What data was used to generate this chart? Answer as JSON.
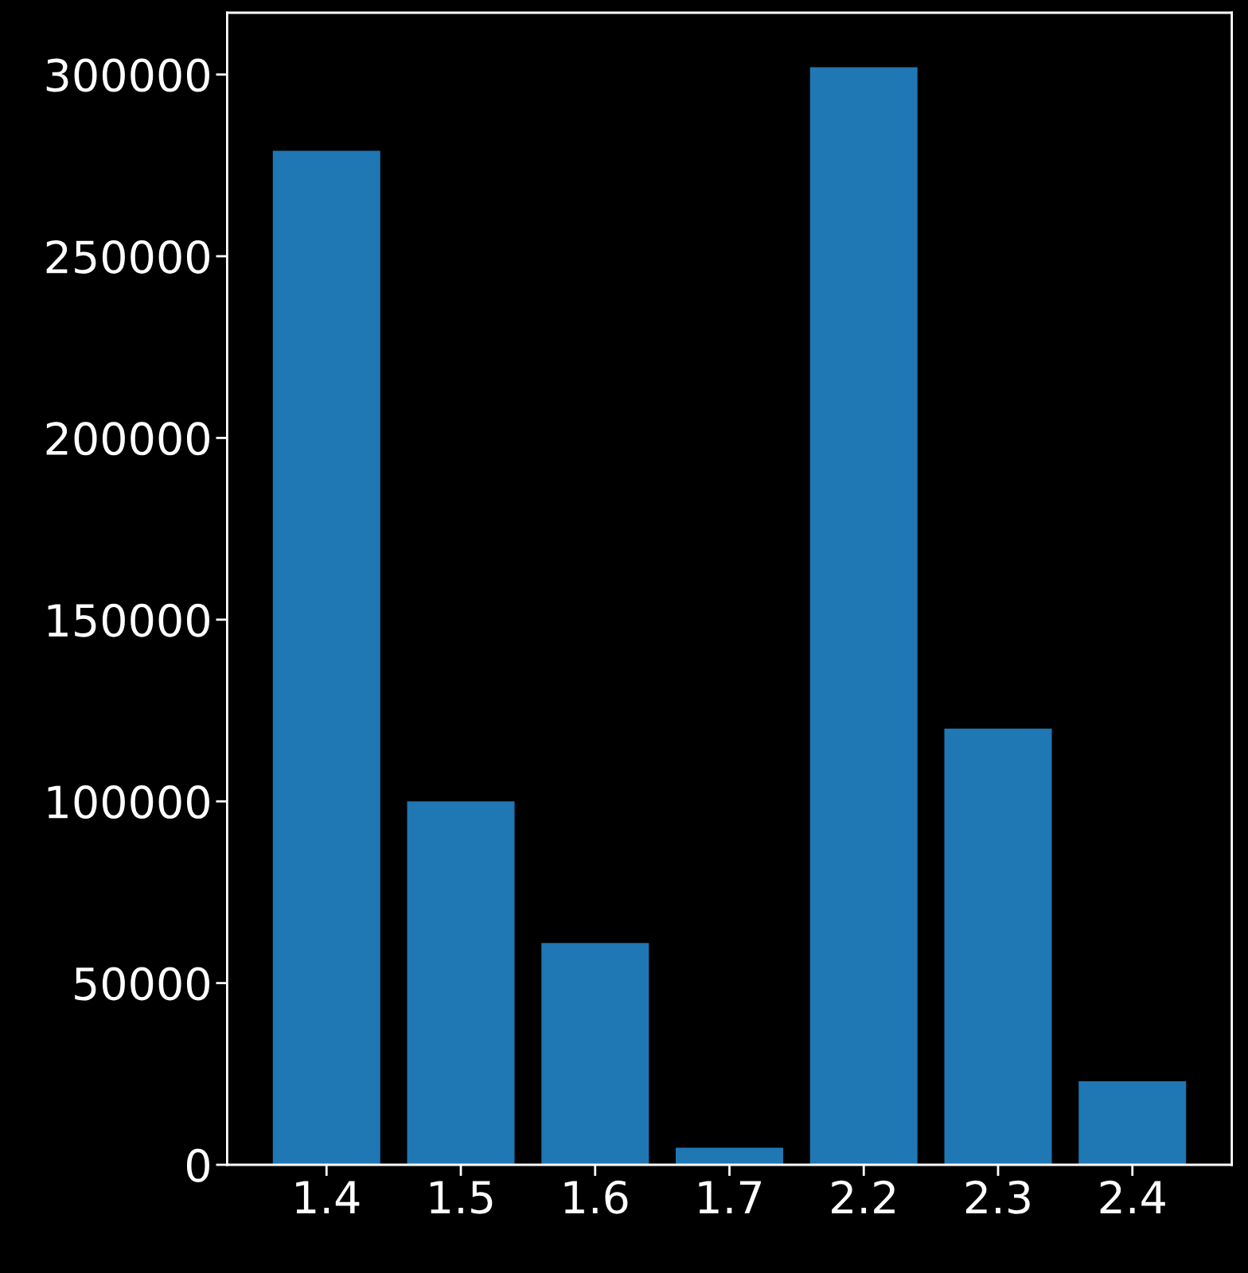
{
  "chart_data": {
    "type": "bar",
    "categories": [
      "1.4",
      "1.5",
      "1.6",
      "1.7",
      "2.2",
      "2.3",
      "2.4"
    ],
    "values": [
      279000,
      100000,
      61000,
      4700,
      302000,
      120000,
      23000
    ],
    "color": "#1f77b4",
    "ylim": [
      0,
      317000
    ],
    "yticks": [
      0,
      50000,
      100000,
      150000,
      200000,
      250000,
      300000
    ],
    "grid": false
  }
}
